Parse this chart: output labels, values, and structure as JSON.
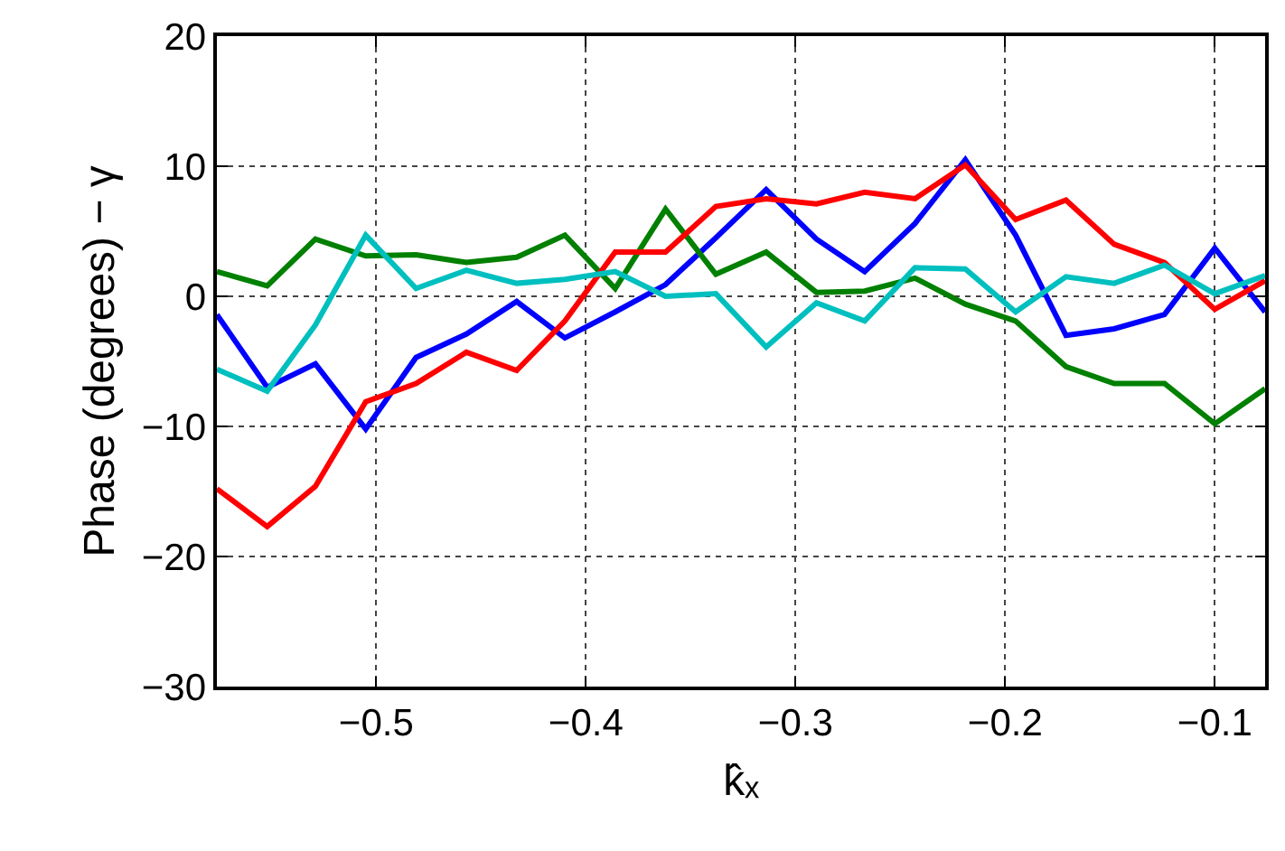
{
  "chart_data": {
    "type": "line",
    "xlabel": "k̂ₓ",
    "ylabel": "Phase (degrees) − γ",
    "x": [
      -0.576,
      -0.552,
      -0.529,
      -0.505,
      -0.481,
      -0.457,
      -0.433,
      -0.41,
      -0.386,
      -0.362,
      -0.338,
      -0.314,
      -0.29,
      -0.267,
      -0.243,
      -0.219,
      -0.195,
      -0.171,
      -0.148,
      -0.124,
      -0.1,
      -0.076
    ],
    "series": [
      {
        "color": "#0000ff",
        "values": [
          -1.4,
          -7.0,
          -5.2,
          -10.2,
          -4.7,
          -2.9,
          -0.4,
          -3.2,
          -1.2,
          0.9,
          4.5,
          8.2,
          4.4,
          1.9,
          5.6,
          10.5,
          4.7,
          -3.0,
          -2.5,
          -1.4,
          3.7,
          -1.2
        ]
      },
      {
        "color": "#008000",
        "values": [
          1.9,
          0.8,
          4.4,
          3.1,
          3.2,
          2.6,
          3.0,
          4.7,
          0.6,
          6.7,
          1.7,
          3.4,
          0.3,
          0.4,
          1.4,
          -0.6,
          -1.9,
          -5.4,
          -6.7,
          -6.7,
          -9.8,
          -7.1
        ]
      },
      {
        "color": "#ff0000",
        "values": [
          -14.8,
          -17.7,
          -14.6,
          -8.1,
          -6.7,
          -4.3,
          -5.7,
          -1.9,
          3.4,
          3.4,
          6.9,
          7.5,
          7.1,
          8.0,
          7.5,
          10.1,
          5.9,
          7.4,
          4.0,
          2.6,
          -1.0,
          1.2
        ]
      },
      {
        "color": "#00bfbf",
        "values": [
          -5.6,
          -7.3,
          -2.2,
          4.7,
          0.6,
          2.0,
          1.0,
          1.3,
          1.9,
          0.0,
          0.2,
          -3.9,
          -0.5,
          -1.9,
          2.2,
          2.1,
          -1.2,
          1.5,
          1.0,
          2.4,
          0.2,
          1.6
        ]
      }
    ],
    "xlim": [
      -0.576,
      -0.076
    ],
    "xticks": [
      {
        "value": -0.5,
        "label": "−0.5"
      },
      {
        "value": -0.4,
        "label": "−0.4"
      },
      {
        "value": -0.3,
        "label": "−0.3"
      },
      {
        "value": -0.2,
        "label": "−0.2"
      },
      {
        "value": -0.1,
        "label": "−0.1"
      }
    ],
    "ylim": [
      -30,
      20
    ],
    "yticks": [
      {
        "value": -30,
        "label": "−30"
      },
      {
        "value": -20,
        "label": "−20"
      },
      {
        "value": -10,
        "label": "−10"
      },
      0,
      10,
      20
    ],
    "grid": true,
    "marker": "none",
    "line_style": "solid"
  }
}
